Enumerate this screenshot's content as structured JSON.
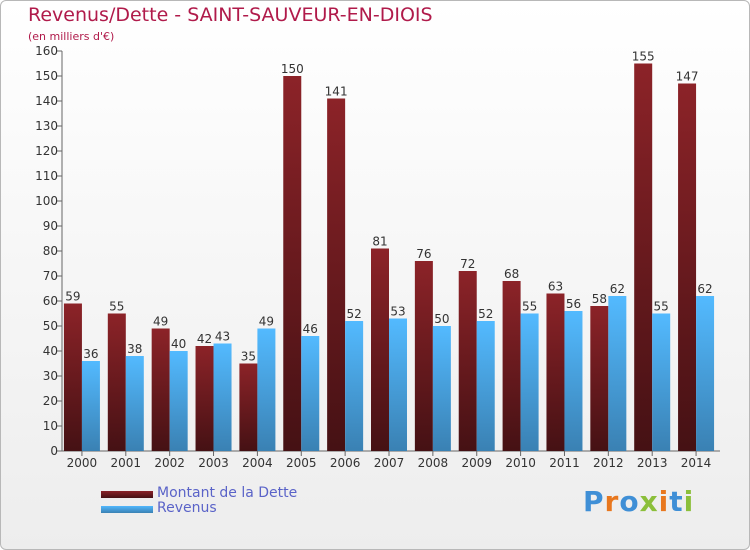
{
  "chart_data": {
    "type": "bar",
    "title": "Revenus/Dette - SAINT-SAUVEUR-EN-DIOIS",
    "subtitle": "(en milliers d'€)",
    "categories": [
      "2000",
      "2001",
      "2002",
      "2003",
      "2004",
      "2005",
      "2006",
      "2007",
      "2008",
      "2009",
      "2010",
      "2011",
      "2012",
      "2013",
      "2014"
    ],
    "series": [
      {
        "name": "Montant de la Dette",
        "color": "#7d1f24",
        "values": [
          59,
          55,
          49,
          42,
          35,
          150,
          141,
          81,
          76,
          72,
          68,
          63,
          58,
          155,
          147
        ]
      },
      {
        "name": "Revenus",
        "color": "#4aa6e6",
        "values": [
          36,
          38,
          40,
          43,
          49,
          46,
          52,
          53,
          50,
          52,
          55,
          56,
          62,
          55,
          62
        ]
      }
    ],
    "ylim": [
      0,
      160
    ],
    "yticks": [
      0,
      10,
      20,
      30,
      40,
      50,
      60,
      70,
      80,
      90,
      100,
      110,
      120,
      130,
      140,
      150,
      160
    ],
    "grid": false,
    "data_labels": true,
    "legend_position": "bottom-left"
  },
  "branding": {
    "logo_text": "Proxiti"
  }
}
